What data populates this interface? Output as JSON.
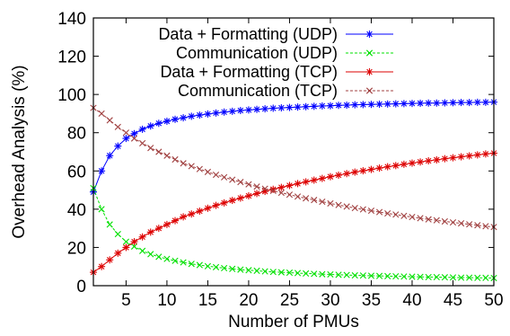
{
  "chart_data": {
    "type": "line",
    "title": "",
    "xlabel": "Number of PMUs",
    "ylabel": "Overhead Analysis (%)",
    "xlim": [
      1,
      50
    ],
    "ylim": [
      0,
      140
    ],
    "xticks": [
      5,
      10,
      15,
      20,
      25,
      30,
      35,
      40,
      45,
      50
    ],
    "xtick_labels": [
      "5",
      "10",
      "15",
      "20",
      "25",
      "30",
      "35",
      "40",
      "45",
      "50"
    ],
    "yticks": [
      0,
      20,
      40,
      60,
      80,
      100,
      120,
      140
    ],
    "ytick_labels": [
      "0",
      "20",
      "40",
      "60",
      "80",
      "100",
      "120",
      "140"
    ],
    "grid": false,
    "legend_position": "top-right",
    "x": [
      1,
      2,
      3,
      4,
      5,
      6,
      7,
      8,
      9,
      10,
      11,
      12,
      13,
      14,
      15,
      16,
      17,
      18,
      19,
      20,
      21,
      22,
      23,
      24,
      25,
      26,
      27,
      28,
      29,
      30,
      31,
      32,
      33,
      34,
      35,
      36,
      37,
      38,
      39,
      40,
      41,
      42,
      43,
      44,
      45,
      46,
      47,
      48,
      49,
      50
    ],
    "series": [
      {
        "name": "Data + Formatting (UDP)",
        "color": "#0000ff",
        "marker": "star",
        "values": [
          49.0,
          60.0,
          68.0,
          73.0,
          77.0,
          79.5,
          81.8,
          83.5,
          84.9,
          86.0,
          87.0,
          87.8,
          88.6,
          89.2,
          89.8,
          90.3,
          90.8,
          91.2,
          91.6,
          91.9,
          92.2,
          92.5,
          92.8,
          93.0,
          93.2,
          93.4,
          93.6,
          93.8,
          94.0,
          94.1,
          94.3,
          94.4,
          94.6,
          94.7,
          94.8,
          94.9,
          95.0,
          95.1,
          95.2,
          95.3,
          95.4,
          95.5,
          95.5,
          95.6,
          95.7,
          95.8,
          95.8,
          95.9,
          95.9,
          96.0
        ]
      },
      {
        "name": "Communication (UDP)",
        "color": "#00e000",
        "marker": "x",
        "values": [
          51.0,
          40.0,
          32.0,
          27.0,
          23.0,
          20.5,
          18.2,
          16.5,
          15.1,
          14.0,
          13.0,
          12.2,
          11.4,
          10.8,
          10.2,
          9.7,
          9.2,
          8.8,
          8.4,
          8.1,
          7.8,
          7.5,
          7.2,
          7.0,
          6.8,
          6.6,
          6.4,
          6.2,
          6.0,
          5.9,
          5.7,
          5.6,
          5.4,
          5.3,
          5.2,
          5.1,
          5.0,
          4.9,
          4.8,
          4.7,
          4.6,
          4.5,
          4.5,
          4.4,
          4.3,
          4.2,
          4.2,
          4.1,
          4.1,
          4.0
        ]
      },
      {
        "name": "Data + Formatting (TCP)",
        "color": "#dd0000",
        "marker": "star",
        "values": [
          7.0,
          10.0,
          13.5,
          17.0,
          20.0,
          23.0,
          25.5,
          28.0,
          30.0,
          32.0,
          34.0,
          36.0,
          37.5,
          39.0,
          40.5,
          42.0,
          43.3,
          44.6,
          45.8,
          47.0,
          48.2,
          49.3,
          50.4,
          51.4,
          52.4,
          53.4,
          54.3,
          55.2,
          56.1,
          57.0,
          57.8,
          58.6,
          59.4,
          60.1,
          60.8,
          61.5,
          62.2,
          62.8,
          63.5,
          64.1,
          64.7,
          65.3,
          65.8,
          66.4,
          66.9,
          67.4,
          67.9,
          68.4,
          68.9,
          69.3
        ]
      },
      {
        "name": "Communication (TCP)",
        "color": "#a04040",
        "marker": "x",
        "values": [
          93.0,
          90.0,
          86.5,
          83.0,
          80.0,
          77.0,
          74.5,
          72.0,
          70.0,
          68.0,
          66.0,
          64.0,
          62.5,
          61.0,
          59.5,
          58.0,
          56.7,
          55.4,
          54.2,
          53.0,
          51.8,
          50.7,
          49.6,
          48.6,
          47.6,
          46.6,
          45.7,
          44.8,
          43.9,
          43.0,
          42.2,
          41.4,
          40.6,
          39.9,
          39.2,
          38.5,
          37.8,
          37.2,
          36.5,
          35.9,
          35.3,
          34.7,
          34.2,
          33.6,
          33.1,
          32.6,
          32.1,
          31.6,
          31.1,
          30.7
        ]
      }
    ]
  }
}
